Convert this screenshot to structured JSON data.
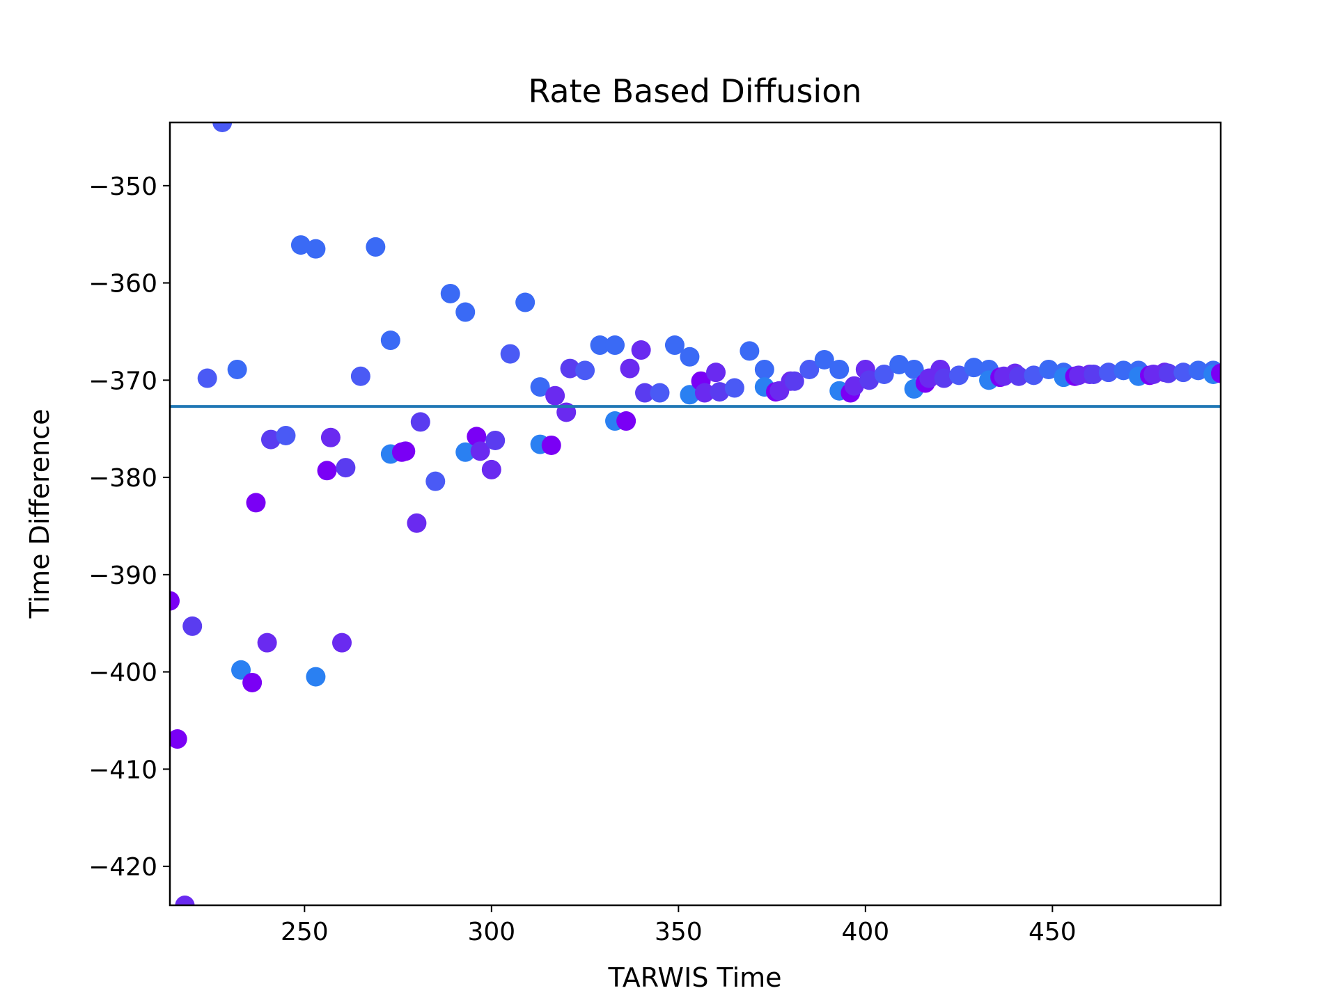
{
  "chart_data": {
    "type": "scatter",
    "title": "Rate Based Diffusion",
    "xlabel": "TARWIS Time",
    "ylabel": "Time Difference",
    "xlim": [
      214,
      495
    ],
    "ylim": [
      -424,
      -343.5
    ],
    "x_ticks": [
      250,
      300,
      350,
      400,
      450
    ],
    "x_tick_labels": [
      "250",
      "300",
      "350",
      "400",
      "450"
    ],
    "y_ticks": [
      -350,
      -360,
      -370,
      -380,
      -390,
      -400,
      -410,
      -420
    ],
    "y_tick_labels": [
      "−350",
      "−360",
      "−370",
      "−380",
      "−390",
      "−400",
      "−410",
      "−420"
    ],
    "grid": false,
    "legend": "none",
    "reference_line": {
      "y": -372.7,
      "color": "#1f77b4"
    },
    "points": [
      {
        "x": 214,
        "y": -392.7,
        "color": "#7a00f5"
      },
      {
        "x": 216,
        "y": -406.9,
        "color": "#7a00f5"
      },
      {
        "x": 218,
        "y": -424.0,
        "color": "#6a2af0"
      },
      {
        "x": 220,
        "y": -395.3,
        "color": "#5a3cf0"
      },
      {
        "x": 224,
        "y": -369.8,
        "color": "#4a5af5"
      },
      {
        "x": 228,
        "y": -343.5,
        "color": "#4a5af5"
      },
      {
        "x": 232,
        "y": -368.9,
        "color": "#3a6af5"
      },
      {
        "x": 233,
        "y": -399.8,
        "color": "#2a80f2"
      },
      {
        "x": 236,
        "y": -401.1,
        "color": "#7a00f5"
      },
      {
        "x": 237,
        "y": -382.6,
        "color": "#7a00f5"
      },
      {
        "x": 240,
        "y": -397.0,
        "color": "#6a2af0"
      },
      {
        "x": 241,
        "y": -376.1,
        "color": "#5a3cf0"
      },
      {
        "x": 245,
        "y": -375.7,
        "color": "#4a5af5"
      },
      {
        "x": 249,
        "y": -356.1,
        "color": "#3a6af5"
      },
      {
        "x": 253,
        "y": -356.5,
        "color": "#3a6af5"
      },
      {
        "x": 253,
        "y": -400.5,
        "color": "#2a80f2"
      },
      {
        "x": 256,
        "y": -379.3,
        "color": "#7a00f5"
      },
      {
        "x": 257,
        "y": -375.9,
        "color": "#6a2af0"
      },
      {
        "x": 260,
        "y": -397.0,
        "color": "#6a2af0"
      },
      {
        "x": 261,
        "y": -379.0,
        "color": "#5a3cf0"
      },
      {
        "x": 265,
        "y": -369.6,
        "color": "#4a5af5"
      },
      {
        "x": 269,
        "y": -356.3,
        "color": "#3a6af5"
      },
      {
        "x": 273,
        "y": -365.9,
        "color": "#3a6af5"
      },
      {
        "x": 273,
        "y": -377.6,
        "color": "#2a80f2"
      },
      {
        "x": 276,
        "y": -377.4,
        "color": "#7a00f5"
      },
      {
        "x": 277,
        "y": -377.3,
        "color": "#7a00f5"
      },
      {
        "x": 280,
        "y": -384.7,
        "color": "#6a2af0"
      },
      {
        "x": 281,
        "y": -374.3,
        "color": "#5a3cf0"
      },
      {
        "x": 285,
        "y": -380.4,
        "color": "#4a5af5"
      },
      {
        "x": 289,
        "y": -361.1,
        "color": "#3a6af5"
      },
      {
        "x": 293,
        "y": -363.0,
        "color": "#3a6af5"
      },
      {
        "x": 293,
        "y": -377.4,
        "color": "#2a80f2"
      },
      {
        "x": 296,
        "y": -375.8,
        "color": "#7a00f5"
      },
      {
        "x": 297,
        "y": -377.3,
        "color": "#6a2af0"
      },
      {
        "x": 300,
        "y": -379.2,
        "color": "#6a2af0"
      },
      {
        "x": 301,
        "y": -376.2,
        "color": "#5a3cf0"
      },
      {
        "x": 305,
        "y": -367.3,
        "color": "#4a5af5"
      },
      {
        "x": 309,
        "y": -362.0,
        "color": "#3a6af5"
      },
      {
        "x": 313,
        "y": -370.7,
        "color": "#3a6af5"
      },
      {
        "x": 313,
        "y": -376.6,
        "color": "#2a80f2"
      },
      {
        "x": 316,
        "y": -376.7,
        "color": "#7a00f5"
      },
      {
        "x": 317,
        "y": -371.6,
        "color": "#6a2af0"
      },
      {
        "x": 320,
        "y": -373.3,
        "color": "#6a2af0"
      },
      {
        "x": 321,
        "y": -368.8,
        "color": "#5a3cf0"
      },
      {
        "x": 325,
        "y": -369.0,
        "color": "#4a5af5"
      },
      {
        "x": 329,
        "y": -366.4,
        "color": "#3a6af5"
      },
      {
        "x": 333,
        "y": -366.4,
        "color": "#3a6af5"
      },
      {
        "x": 333,
        "y": -374.2,
        "color": "#2a80f2"
      },
      {
        "x": 336,
        "y": -374.2,
        "color": "#7a00f5"
      },
      {
        "x": 337,
        "y": -368.8,
        "color": "#6a2af0"
      },
      {
        "x": 340,
        "y": -366.9,
        "color": "#6a2af0"
      },
      {
        "x": 341,
        "y": -371.3,
        "color": "#5a3cf0"
      },
      {
        "x": 345,
        "y": -371.3,
        "color": "#4a5af5"
      },
      {
        "x": 349,
        "y": -366.4,
        "color": "#3a6af5"
      },
      {
        "x": 353,
        "y": -367.6,
        "color": "#3a6af5"
      },
      {
        "x": 353,
        "y": -371.5,
        "color": "#2a80f2"
      },
      {
        "x": 356,
        "y": -370.1,
        "color": "#7a00f5"
      },
      {
        "x": 357,
        "y": -371.3,
        "color": "#6a2af0"
      },
      {
        "x": 360,
        "y": -369.2,
        "color": "#6a2af0"
      },
      {
        "x": 361,
        "y": -371.2,
        "color": "#5a3cf0"
      },
      {
        "x": 365,
        "y": -370.8,
        "color": "#4a5af5"
      },
      {
        "x": 369,
        "y": -367.0,
        "color": "#3a6af5"
      },
      {
        "x": 373,
        "y": -368.9,
        "color": "#3a6af5"
      },
      {
        "x": 373,
        "y": -370.7,
        "color": "#2a80f2"
      },
      {
        "x": 376,
        "y": -371.2,
        "color": "#7a00f5"
      },
      {
        "x": 377,
        "y": -371.1,
        "color": "#6a2af0"
      },
      {
        "x": 380,
        "y": -370.1,
        "color": "#6a2af0"
      },
      {
        "x": 381,
        "y": -370.1,
        "color": "#5a3cf0"
      },
      {
        "x": 385,
        "y": -368.9,
        "color": "#4a5af5"
      },
      {
        "x": 389,
        "y": -367.9,
        "color": "#3a6af5"
      },
      {
        "x": 393,
        "y": -368.9,
        "color": "#3a6af5"
      },
      {
        "x": 393,
        "y": -371.1,
        "color": "#2a80f2"
      },
      {
        "x": 396,
        "y": -371.3,
        "color": "#7a00f5"
      },
      {
        "x": 397,
        "y": -370.6,
        "color": "#6a2af0"
      },
      {
        "x": 400,
        "y": -368.9,
        "color": "#6a2af0"
      },
      {
        "x": 401,
        "y": -370.0,
        "color": "#5a3cf0"
      },
      {
        "x": 405,
        "y": -369.4,
        "color": "#4a5af5"
      },
      {
        "x": 409,
        "y": -368.4,
        "color": "#3a6af5"
      },
      {
        "x": 413,
        "y": -368.9,
        "color": "#3a6af5"
      },
      {
        "x": 413,
        "y": -370.9,
        "color": "#2a80f2"
      },
      {
        "x": 416,
        "y": -370.3,
        "color": "#7a00f5"
      },
      {
        "x": 417,
        "y": -369.8,
        "color": "#6a2af0"
      },
      {
        "x": 420,
        "y": -368.9,
        "color": "#6a2af0"
      },
      {
        "x": 421,
        "y": -369.8,
        "color": "#5a3cf0"
      },
      {
        "x": 425,
        "y": -369.5,
        "color": "#4a5af5"
      },
      {
        "x": 429,
        "y": -368.7,
        "color": "#3a6af5"
      },
      {
        "x": 433,
        "y": -368.9,
        "color": "#3a6af5"
      },
      {
        "x": 433,
        "y": -370.0,
        "color": "#2a80f2"
      },
      {
        "x": 436,
        "y": -369.7,
        "color": "#7a00f5"
      },
      {
        "x": 437,
        "y": -369.6,
        "color": "#6a2af0"
      },
      {
        "x": 440,
        "y": -369.3,
        "color": "#6a2af0"
      },
      {
        "x": 441,
        "y": -369.6,
        "color": "#5a3cf0"
      },
      {
        "x": 445,
        "y": -369.5,
        "color": "#4a5af5"
      },
      {
        "x": 449,
        "y": -368.9,
        "color": "#3a6af5"
      },
      {
        "x": 453,
        "y": -369.2,
        "color": "#3a6af5"
      },
      {
        "x": 453,
        "y": -369.7,
        "color": "#2a80f2"
      },
      {
        "x": 456,
        "y": -369.6,
        "color": "#7a00f5"
      },
      {
        "x": 457,
        "y": -369.5,
        "color": "#6a2af0"
      },
      {
        "x": 460,
        "y": -369.4,
        "color": "#6a2af0"
      },
      {
        "x": 461,
        "y": -369.4,
        "color": "#5a3cf0"
      },
      {
        "x": 465,
        "y": -369.2,
        "color": "#4a5af5"
      },
      {
        "x": 469,
        "y": -369.0,
        "color": "#3a6af5"
      },
      {
        "x": 473,
        "y": -369.0,
        "color": "#3a6af5"
      },
      {
        "x": 473,
        "y": -369.6,
        "color": "#2a80f2"
      },
      {
        "x": 476,
        "y": -369.5,
        "color": "#7a00f5"
      },
      {
        "x": 477,
        "y": -369.4,
        "color": "#6a2af0"
      },
      {
        "x": 480,
        "y": -369.2,
        "color": "#6a2af0"
      },
      {
        "x": 481,
        "y": -369.3,
        "color": "#5a3cf0"
      },
      {
        "x": 485,
        "y": -369.2,
        "color": "#4a5af5"
      },
      {
        "x": 489,
        "y": -369.0,
        "color": "#3a6af5"
      },
      {
        "x": 493,
        "y": -369.0,
        "color": "#3a6af5"
      },
      {
        "x": 493,
        "y": -369.4,
        "color": "#2a80f2"
      },
      {
        "x": 495,
        "y": -369.3,
        "color": "#7a00f5"
      }
    ]
  }
}
